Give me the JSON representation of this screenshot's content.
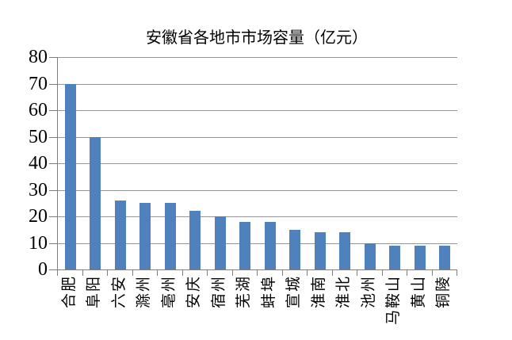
{
  "chart_data": {
    "type": "bar",
    "title": "安徽省各地市市场容量（亿元）",
    "categories": [
      "合肥",
      "阜阳",
      "六安",
      "滁州",
      "亳州",
      "安庆",
      "宿州",
      "芜湖",
      "蚌埠",
      "宣城",
      "淮南",
      "淮北",
      "池州",
      "马鞍山",
      "黄山",
      "铜陵"
    ],
    "values": [
      70,
      50,
      26,
      25,
      25,
      22,
      20,
      18,
      18,
      15,
      14,
      14,
      10,
      9,
      9,
      9
    ],
    "xlabel": "",
    "ylabel": "",
    "ylim": [
      0,
      80
    ],
    "yticks": [
      0,
      10,
      20,
      30,
      40,
      50,
      60,
      70,
      80
    ],
    "grid": "horizontal",
    "legend": "none",
    "bar_color": "#4F81BD",
    "gridline_color": "#949494",
    "axis_color": "#7f7f7f",
    "text_color": "#000000",
    "background_color": "#ffffff"
  }
}
